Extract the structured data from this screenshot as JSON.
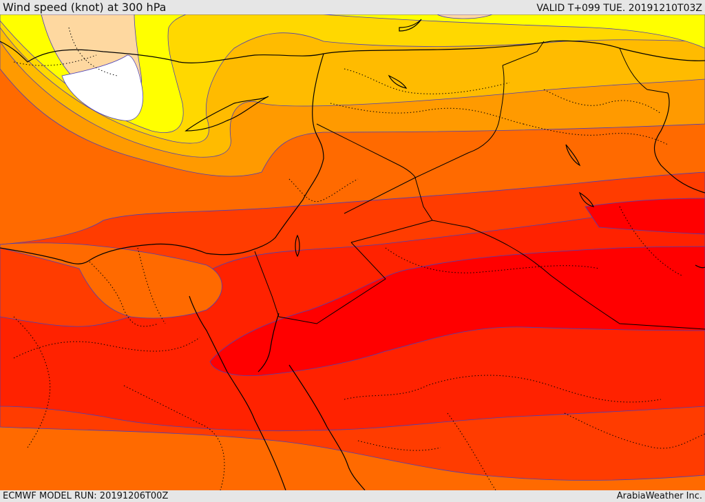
{
  "header": {
    "title": "Wind speed (knot) at 300 hPa",
    "valid": "VALID T+099 TUE. 20191210T03Z"
  },
  "footer": {
    "model_run": "ECMWF MODEL RUN: 20191206T00Z",
    "credit": "ArabiaWeather Inc."
  },
  "map": {
    "field": "wind speed at 300 hPa",
    "palette": [
      "#ffffff",
      "#fed8a0",
      "#ffff00",
      "#ffd800",
      "#ffbb00",
      "#ff9a00",
      "#ff6a00",
      "#ff3c00",
      "#ff2200",
      "#ff0000"
    ],
    "contour_color": "#4a3fb8",
    "coastline_color": "#000000",
    "border_style": "dotted"
  }
}
